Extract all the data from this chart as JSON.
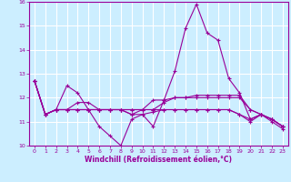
{
  "xlabel": "Windchill (Refroidissement éolien,°C)",
  "background_color": "#cceeff",
  "line_color": "#990099",
  "grid_color": "#aaddcc",
  "ylim": [
    10,
    16
  ],
  "xlim": [
    -0.5,
    23.5
  ],
  "yticks": [
    10,
    11,
    12,
    13,
    14,
    15,
    16
  ],
  "xticks": [
    0,
    1,
    2,
    3,
    4,
    5,
    6,
    7,
    8,
    9,
    10,
    11,
    12,
    13,
    14,
    15,
    16,
    17,
    18,
    19,
    20,
    21,
    22,
    23
  ],
  "series": [
    [
      12.7,
      11.3,
      11.5,
      12.5,
      12.2,
      11.5,
      10.8,
      10.4,
      10.0,
      11.1,
      11.3,
      10.8,
      11.9,
      13.1,
      14.9,
      15.9,
      14.7,
      14.4,
      12.8,
      12.2,
      11.1,
      11.3,
      11.1,
      10.8
    ],
    [
      12.7,
      11.3,
      11.5,
      11.5,
      11.8,
      11.8,
      11.5,
      11.5,
      11.5,
      11.3,
      11.3,
      11.4,
      11.5,
      11.5,
      11.5,
      11.5,
      11.5,
      11.5,
      11.5,
      11.3,
      11.1,
      11.3,
      11.1,
      10.8
    ],
    [
      12.7,
      11.3,
      11.5,
      11.5,
      11.5,
      11.5,
      11.5,
      11.5,
      11.5,
      11.3,
      11.5,
      11.5,
      11.5,
      11.5,
      11.5,
      11.5,
      11.5,
      11.5,
      11.5,
      11.3,
      11.0,
      11.3,
      11.0,
      10.7
    ],
    [
      12.7,
      11.3,
      11.5,
      11.5,
      11.5,
      11.5,
      11.5,
      11.5,
      11.5,
      11.5,
      11.5,
      11.9,
      11.9,
      12.0,
      12.0,
      12.1,
      12.1,
      12.1,
      12.1,
      12.1,
      11.5,
      11.3,
      11.1,
      10.8
    ],
    [
      12.7,
      11.3,
      11.5,
      11.5,
      11.5,
      11.5,
      11.5,
      11.5,
      11.5,
      11.5,
      11.5,
      11.5,
      11.8,
      12.0,
      12.0,
      12.0,
      12.0,
      12.0,
      12.0,
      12.0,
      11.5,
      11.3,
      11.1,
      10.8
    ]
  ]
}
